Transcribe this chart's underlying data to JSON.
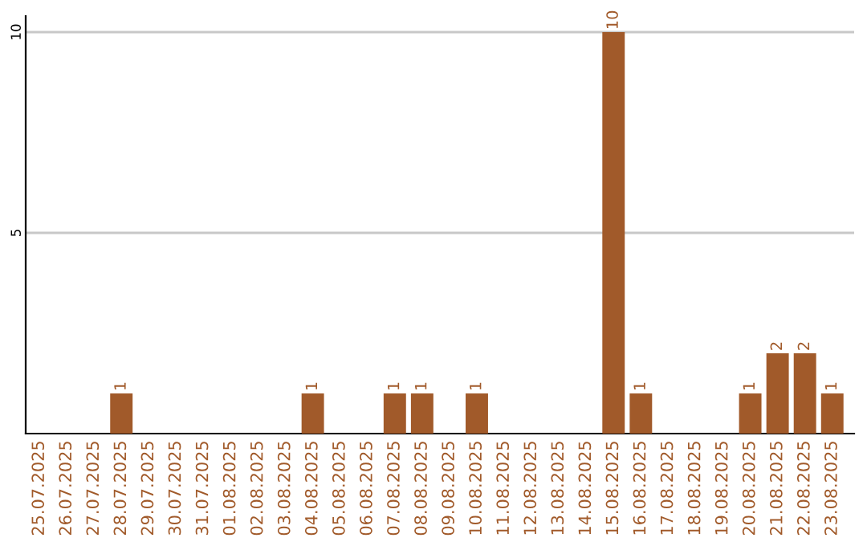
{
  "chart_data": {
    "type": "bar",
    "categories": [
      "25.07.2025",
      "26.07.2025",
      "27.07.2025",
      "28.07.2025",
      "29.07.2025",
      "30.07.2025",
      "31.07.2025",
      "01.08.2025",
      "02.08.2025",
      "03.08.2025",
      "04.08.2025",
      "05.08.2025",
      "06.08.2025",
      "07.08.2025",
      "08.08.2025",
      "09.08.2025",
      "10.08.2025",
      "11.08.2025",
      "12.08.2025",
      "13.08.2025",
      "14.08.2025",
      "15.08.2025",
      "16.08.2025",
      "17.08.2025",
      "18.08.2025",
      "19.08.2025",
      "20.08.2025",
      "21.08.2025",
      "22.08.2025",
      "23.08.2025"
    ],
    "values": [
      0,
      0,
      0,
      1,
      0,
      0,
      0,
      0,
      0,
      0,
      1,
      0,
      0,
      1,
      1,
      0,
      1,
      0,
      0,
      0,
      0,
      10,
      1,
      0,
      0,
      0,
      1,
      2,
      2,
      1
    ],
    "value_labels": [
      null,
      null,
      null,
      "1",
      null,
      null,
      null,
      null,
      null,
      null,
      "1",
      null,
      null,
      "1",
      "1",
      null,
      "1",
      null,
      null,
      null,
      null,
      "10",
      "1",
      null,
      null,
      null,
      "1",
      "2",
      "2",
      "1"
    ],
    "color": "#a15a2a",
    "ylim": [
      0,
      10.4
    ],
    "yticks": [
      5,
      10
    ],
    "grid": "y"
  }
}
